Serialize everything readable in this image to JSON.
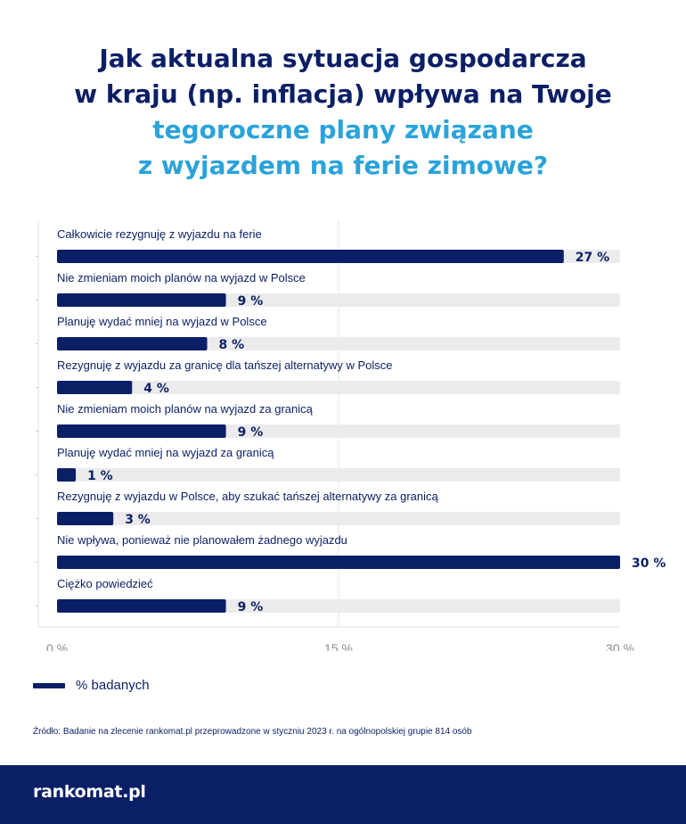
{
  "title": {
    "line1": "Jak aktualna sytuacja gospodarcza",
    "line2": "w kraju (np. inflacja) wpływa na Twoje",
    "line3": "tegoroczne plany związane",
    "line4": "z wyjazdem na ferie zimowe?"
  },
  "colors": {
    "bar": "#0b1f66",
    "track": "#ebebeb",
    "accent": "#2aa3da"
  },
  "chart_data": {
    "type": "bar",
    "orientation": "horizontal",
    "categories": [
      "Całkowicie rezygnuję z wyjazdu na ferie",
      "Nie zmieniam moich planów na wyjazd w Polsce",
      "Planuję wydać mniej na wyjazd w Polsce",
      "Rezygnuję z wyjazdu za granicę dla tańszej alternatywy w Polsce",
      "Nie zmieniam moich planów na wyjazd za granicą",
      "Planuję wydać mniej na wyjazd za granicą",
      "Rezygnuję z wyjazdu w Polsce, aby szukać tańszej alternatywy za granicą",
      "Nie wpływa, ponieważ nie planowałem żadnego wyjazdu",
      "Ciężko powiedzieć"
    ],
    "series": [
      {
        "name": "% badanych",
        "values": [
          27,
          9,
          8,
          4,
          9,
          1,
          3,
          30,
          9
        ]
      }
    ],
    "value_labels": [
      "27 %",
      "9 %",
      "8 %",
      "4 %",
      "9 %",
      "1 %",
      "3 %",
      "30 %",
      "9 %"
    ],
    "xlim": [
      0,
      30
    ],
    "x_ticks": [
      0,
      15,
      30
    ],
    "x_tick_labels": [
      "0 %",
      "15 %",
      "30 %"
    ],
    "grid": true,
    "legend_position": "bottom-left"
  },
  "legend": {
    "label": "% badanych"
  },
  "source": "Źródło: Badanie na zlecenie rankomat.pl przeprowadzone w styczniu 2023 r. na ogólnopolskiej grupie 814 osób",
  "footer": {
    "logo_text": "rankomat.pl"
  }
}
